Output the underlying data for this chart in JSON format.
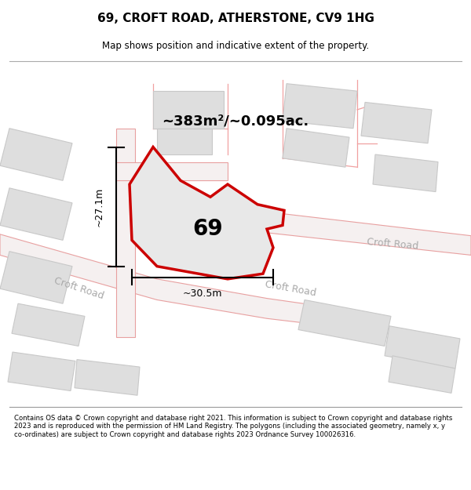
{
  "title": "69, CROFT ROAD, ATHERSTONE, CV9 1HG",
  "subtitle": "Map shows position and indicative extent of the property.",
  "footer": "Contains OS data © Crown copyright and database right 2021. This information is subject to Crown copyright and database rights 2023 and is reproduced with the permission of HM Land Registry. The polygons (including the associated geometry, namely x, y co-ordinates) are subject to Crown copyright and database rights 2023 Ordnance Survey 100026316.",
  "area_label": "~383m²/~0.095ac.",
  "width_label": "~30.5m",
  "height_label": "~27.1m",
  "plot_number": "69",
  "map_bg": "#f0eeec",
  "highlight_color": "#cc0000",
  "highlight_fill": "#e8e8e8",
  "road_color": "#f0a0a0",
  "building_edge": "#cccccc",
  "building_fill": "#e0e0e0",
  "road_fill": "#ffffff"
}
